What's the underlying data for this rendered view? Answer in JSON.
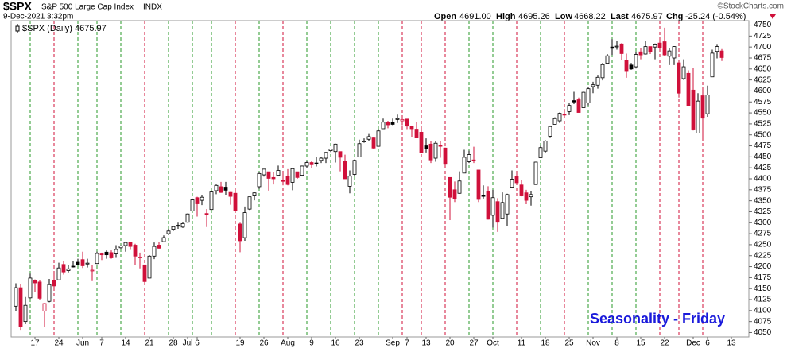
{
  "header": {
    "symbol": "$SPX",
    "name": "S&P 500 Large Cap Index",
    "exchange": "INDX",
    "timestamp": "9-Dec-2021 3:32pm",
    "open_label": "Open",
    "open": "4691.00",
    "high_label": "High",
    "high": "4695.26",
    "low_label": "Low",
    "low": "4668.22",
    "last_label": "Last",
    "last": "4675.97",
    "chg_label": "Chg",
    "chg": "-25.24 (-0.54%)",
    "credit": "©StockCharts.com"
  },
  "chart_data": {
    "type": "candlestick",
    "legend": "$SPX (Daily) 4675.97",
    "annotation": "Seasonality - Friday",
    "up_color": "#000000",
    "down_color": "#d0103a",
    "ylim": [
      4040,
      4760
    ],
    "yticks": [
      4050,
      4075,
      4100,
      4125,
      4150,
      4175,
      4200,
      4225,
      4250,
      4275,
      4300,
      4325,
      4350,
      4375,
      4400,
      4425,
      4450,
      4475,
      4500,
      4525,
      4550,
      4575,
      4600,
      4625,
      4650,
      4675,
      4700,
      4725,
      4750
    ],
    "categories": [
      null,
      null,
      null,
      null,
      "17",
      null,
      null,
      null,
      null,
      "24",
      null,
      null,
      null,
      null,
      "Jun",
      null,
      null,
      null,
      "7",
      null,
      null,
      null,
      null,
      "14",
      null,
      null,
      null,
      null,
      "21",
      null,
      null,
      null,
      null,
      "28",
      null,
      null,
      "Jul",
      null,
      "6",
      null,
      null,
      null,
      null,
      null,
      null,
      null,
      null,
      "19",
      null,
      null,
      null,
      null,
      "26",
      null,
      null,
      null,
      null,
      "Aug",
      null,
      null,
      null,
      null,
      "9",
      null,
      null,
      null,
      null,
      "16",
      null,
      null,
      null,
      null,
      "23",
      null,
      null,
      null,
      null,
      null,
      null,
      "Sep",
      null,
      null,
      "7",
      null,
      null,
      null,
      "13",
      null,
      null,
      null,
      null,
      "20",
      null,
      null,
      null,
      null,
      "27",
      null,
      null,
      null,
      "Oct",
      null,
      null,
      null,
      null,
      null,
      "11",
      null,
      null,
      null,
      null,
      "18",
      null,
      null,
      null,
      null,
      "25",
      null,
      null,
      null,
      null,
      "Nov",
      null,
      null,
      null,
      null,
      "8",
      null,
      null,
      null,
      null,
      "15",
      null,
      null,
      null,
      null,
      "22",
      null,
      null,
      null,
      null,
      null,
      "Dec",
      null,
      null,
      "6",
      null,
      null,
      null,
      null,
      "13"
    ],
    "friday_lines": [
      null,
      null,
      null,
      "#2a9a2a",
      null,
      null,
      null,
      null,
      "#d0103a",
      null,
      null,
      null,
      null,
      "#2a9a2a",
      null,
      null,
      null,
      "#2a9a2a",
      null,
      null,
      null,
      null,
      "#2a9a2a",
      null,
      null,
      null,
      null,
      "#d0103a",
      null,
      null,
      null,
      null,
      "#2a9a2a",
      null,
      null,
      null,
      null,
      "#2a9a2a",
      null,
      null,
      null,
      "#2a9a2a",
      null,
      null,
      null,
      null,
      "#d0103a",
      null,
      null,
      null,
      null,
      "#2a9a2a",
      null,
      null,
      null,
      null,
      "#d0103a",
      null,
      null,
      null,
      null,
      "#2a9a2a",
      null,
      null,
      null,
      null,
      "#2a9a2a",
      null,
      null,
      null,
      null,
      "#2a9a2a",
      null,
      null,
      null,
      null,
      "#2a9a2a",
      null,
      null,
      null,
      null,
      "#d0103a",
      null,
      null,
      null,
      "#d0103a",
      null,
      null,
      null,
      null,
      "#d0103a",
      null,
      null,
      null,
      null,
      "#2a9a2a",
      null,
      null,
      null,
      null,
      "#2a9a2a",
      null,
      null,
      null,
      null,
      "#d0103a",
      null,
      null,
      null,
      null,
      "#2a9a2a",
      null,
      null,
      null,
      null,
      "#d0103a",
      null,
      null,
      null,
      null,
      "#2a9a2a",
      null,
      null,
      null,
      null,
      "#2a9a2a",
      null,
      null,
      null,
      null,
      "#2a9a2a",
      null,
      null,
      null,
      null,
      "#d0103a",
      null,
      null,
      null,
      "#d0103a",
      null,
      null,
      null,
      null,
      "#d0103a",
      null,
      null,
      null,
      null,
      null,
      null
    ],
    "ohlc": [
      [
        4110,
        4162,
        4098,
        4152
      ],
      [
        4152,
        4160,
        4056,
        4063
      ],
      [
        4075,
        4131,
        4069,
        4112
      ],
      [
        4129,
        4184,
        4127,
        4174
      ],
      [
        4169,
        4171,
        4143,
        4163
      ],
      [
        4165,
        4169,
        4125,
        4128
      ],
      [
        4099,
        4117,
        4062,
        4116
      ],
      [
        4121,
        4172,
        4119,
        4159
      ],
      [
        4168,
        4188,
        4151,
        4156
      ],
      [
        4170,
        4209,
        4170,
        4197
      ],
      [
        4205,
        4213,
        4182,
        4188
      ],
      [
        4191,
        4203,
        4187,
        4195
      ],
      [
        4201,
        4213,
        4198,
        4200
      ],
      [
        4210,
        4218,
        4203,
        4204
      ],
      [
        4216,
        4234,
        4197,
        4202
      ],
      [
        4206,
        4218,
        4198,
        4208
      ],
      [
        4191,
        4204,
        4167,
        4192
      ],
      [
        4207,
        4234,
        4206,
        4230
      ],
      [
        4229,
        4232,
        4215,
        4227
      ],
      [
        4233,
        4237,
        4218,
        4227
      ],
      [
        4232,
        4237,
        4218,
        4220
      ],
      [
        4229,
        4249,
        4220,
        4239
      ],
      [
        4243,
        4249,
        4241,
        4247
      ],
      [
        4248,
        4256,
        4234,
        4255
      ],
      [
        4256,
        4257,
        4238,
        4246
      ],
      [
        4249,
        4252,
        4203,
        4224
      ],
      [
        4220,
        4232,
        4196,
        4222
      ],
      [
        4204,
        4204,
        4165,
        4166
      ],
      [
        4174,
        4226,
        4174,
        4224
      ],
      [
        4224,
        4255,
        4217,
        4246
      ],
      [
        4249,
        4256,
        4241,
        4242
      ],
      [
        4257,
        4271,
        4256,
        4266
      ],
      [
        4275,
        4286,
        4272,
        4281
      ],
      [
        4285,
        4293,
        4281,
        4291
      ],
      [
        4294,
        4300,
        4286,
        4292
      ],
      [
        4290,
        4302,
        4288,
        4298
      ],
      [
        4301,
        4321,
        4300,
        4320
      ],
      [
        4327,
        4355,
        4327,
        4352
      ],
      [
        4357,
        4359,
        4314,
        4343
      ],
      [
        4351,
        4362,
        4340,
        4358
      ],
      [
        4321,
        4331,
        4290,
        4320
      ],
      [
        4330,
        4372,
        4330,
        4370
      ],
      [
        4373,
        4387,
        4365,
        4385
      ],
      [
        4382,
        4393,
        4368,
        4369
      ],
      [
        4381,
        4393,
        4362,
        4374
      ],
      [
        4369,
        4370,
        4341,
        4360
      ],
      [
        4367,
        4375,
        4323,
        4327
      ],
      [
        4297,
        4300,
        4233,
        4259
      ],
      [
        4266,
        4337,
        4259,
        4323
      ],
      [
        4331,
        4359,
        4329,
        4359
      ],
      [
        4361,
        4369,
        4351,
        4368
      ],
      [
        4382,
        4415,
        4377,
        4412
      ],
      [
        4409,
        4422,
        4405,
        4422
      ],
      [
        4416,
        4416,
        4373,
        4401
      ],
      [
        4403,
        4415,
        4387,
        4400
      ],
      [
        4408,
        4430,
        4408,
        4419
      ],
      [
        4396,
        4412,
        4385,
        4395
      ],
      [
        4406,
        4422,
        4385,
        4387
      ],
      [
        4392,
        4424,
        4374,
        4423
      ],
      [
        4416,
        4416,
        4400,
        4403
      ],
      [
        4408,
        4430,
        4407,
        4429
      ],
      [
        4429,
        4441,
        4424,
        4437
      ],
      [
        4437,
        4440,
        4425,
        4432
      ],
      [
        4436,
        4450,
        4428,
        4436
      ],
      [
        4442,
        4449,
        4436,
        4447
      ],
      [
        4447,
        4461,
        4436,
        4460
      ],
      [
        4464,
        4468,
        4461,
        4468
      ],
      [
        4462,
        4480,
        4437,
        4479
      ],
      [
        4462,
        4462,
        4417,
        4449
      ],
      [
        4440,
        4455,
        4400,
        4400
      ],
      [
        4383,
        4419,
        4367,
        4406
      ],
      [
        4410,
        4444,
        4406,
        4442
      ],
      [
        4450,
        4489,
        4450,
        4480
      ],
      [
        4484,
        4492,
        4482,
        4486
      ],
      [
        4490,
        4502,
        4486,
        4496
      ],
      [
        4493,
        4495,
        4468,
        4470
      ],
      [
        4474,
        4513,
        4474,
        4509
      ],
      [
        4514,
        4537,
        4514,
        4529
      ],
      [
        4529,
        4532,
        4515,
        4523
      ],
      [
        4529,
        4537,
        4522,
        4524
      ],
      [
        4535,
        4546,
        4527,
        4537
      ],
      [
        4532,
        4541,
        4522,
        4535
      ],
      [
        4536,
        4536,
        4513,
        4520
      ],
      [
        4519,
        4521,
        4494,
        4514
      ],
      [
        4513,
        4530,
        4493,
        4493
      ],
      [
        4506,
        4521,
        4458,
        4459
      ],
      [
        4475,
        4492,
        4460,
        4469
      ],
      [
        4479,
        4486,
        4436,
        4443
      ],
      [
        4447,
        4486,
        4439,
        4481
      ],
      [
        4477,
        4486,
        4448,
        4474
      ],
      [
        4470,
        4471,
        4427,
        4433
      ],
      [
        4403,
        4403,
        4306,
        4358
      ],
      [
        4375,
        4394,
        4347,
        4355
      ],
      [
        4367,
        4417,
        4366,
        4395
      ],
      [
        4413,
        4466,
        4413,
        4449
      ],
      [
        4439,
        4464,
        4436,
        4455
      ],
      [
        4443,
        4473,
        4436,
        4443
      ],
      [
        4420,
        4420,
        4347,
        4353
      ],
      [
        4362,
        4385,
        4355,
        4360
      ],
      [
        4371,
        4383,
        4307,
        4308
      ],
      [
        4317,
        4375,
        4289,
        4357
      ],
      [
        4348,
        4356,
        4279,
        4301
      ],
      [
        4310,
        4369,
        4310,
        4346
      ],
      [
        4320,
        4366,
        4293,
        4364
      ],
      [
        4381,
        4419,
        4381,
        4399
      ],
      [
        4406,
        4412,
        4386,
        4391
      ],
      [
        4386,
        4397,
        4360,
        4361
      ],
      [
        4368,
        4375,
        4342,
        4351
      ],
      [
        4359,
        4372,
        4339,
        4364
      ],
      [
        4387,
        4439,
        4387,
        4438
      ],
      [
        4448,
        4475,
        4448,
        4471
      ],
      [
        4463,
        4488,
        4460,
        4486
      ],
      [
        4497,
        4520,
        4493,
        4519
      ],
      [
        4524,
        4540,
        4524,
        4537
      ],
      [
        4532,
        4551,
        4527,
        4549
      ],
      [
        4547,
        4559,
        4538,
        4545
      ],
      [
        4553,
        4572,
        4545,
        4567
      ],
      [
        4578,
        4598,
        4570,
        4575
      ],
      [
        4580,
        4585,
        4551,
        4551
      ],
      [
        4562,
        4598,
        4562,
        4597
      ],
      [
        4573,
        4608,
        4567,
        4605
      ],
      [
        4610,
        4621,
        4595,
        4614
      ],
      [
        4613,
        4635,
        4605,
        4631
      ],
      [
        4630,
        4664,
        4624,
        4660
      ],
      [
        4663,
        4684,
        4662,
        4680
      ],
      [
        4700,
        4718,
        4682,
        4697
      ],
      [
        4701,
        4714,
        4694,
        4702
      ],
      [
        4707,
        4709,
        4670,
        4685
      ],
      [
        4670,
        4685,
        4630,
        4646
      ],
      [
        4659,
        4664,
        4648,
        4650
      ],
      [
        4655,
        4688,
        4651,
        4683
      ],
      [
        4689,
        4697,
        4672,
        4682
      ],
      [
        4684,
        4714,
        4683,
        4701
      ],
      [
        4701,
        4701,
        4684,
        4689
      ],
      [
        4700,
        4708,
        4672,
        4705
      ],
      [
        4709,
        4718,
        4690,
        4698
      ],
      [
        4712,
        4744,
        4679,
        4682
      ],
      [
        4679,
        4697,
        4659,
        4691
      ],
      [
        4675,
        4702,
        4659,
        4701
      ],
      [
        4664,
        4664,
        4585,
        4595
      ],
      [
        4628,
        4672,
        4625,
        4655
      ],
      [
        4640,
        4647,
        4565,
        4567
      ],
      [
        4602,
        4652,
        4510,
        4513
      ],
      [
        4504,
        4595,
        4504,
        4577
      ],
      [
        4589,
        4608,
        4495,
        4538
      ],
      [
        4548,
        4612,
        4541,
        4591
      ],
      [
        4632,
        4694,
        4632,
        4686
      ],
      [
        4690,
        4705,
        4674,
        4701
      ],
      [
        4691,
        4695.26,
        4668.22,
        4675.97
      ],
      null,
      null
    ]
  }
}
